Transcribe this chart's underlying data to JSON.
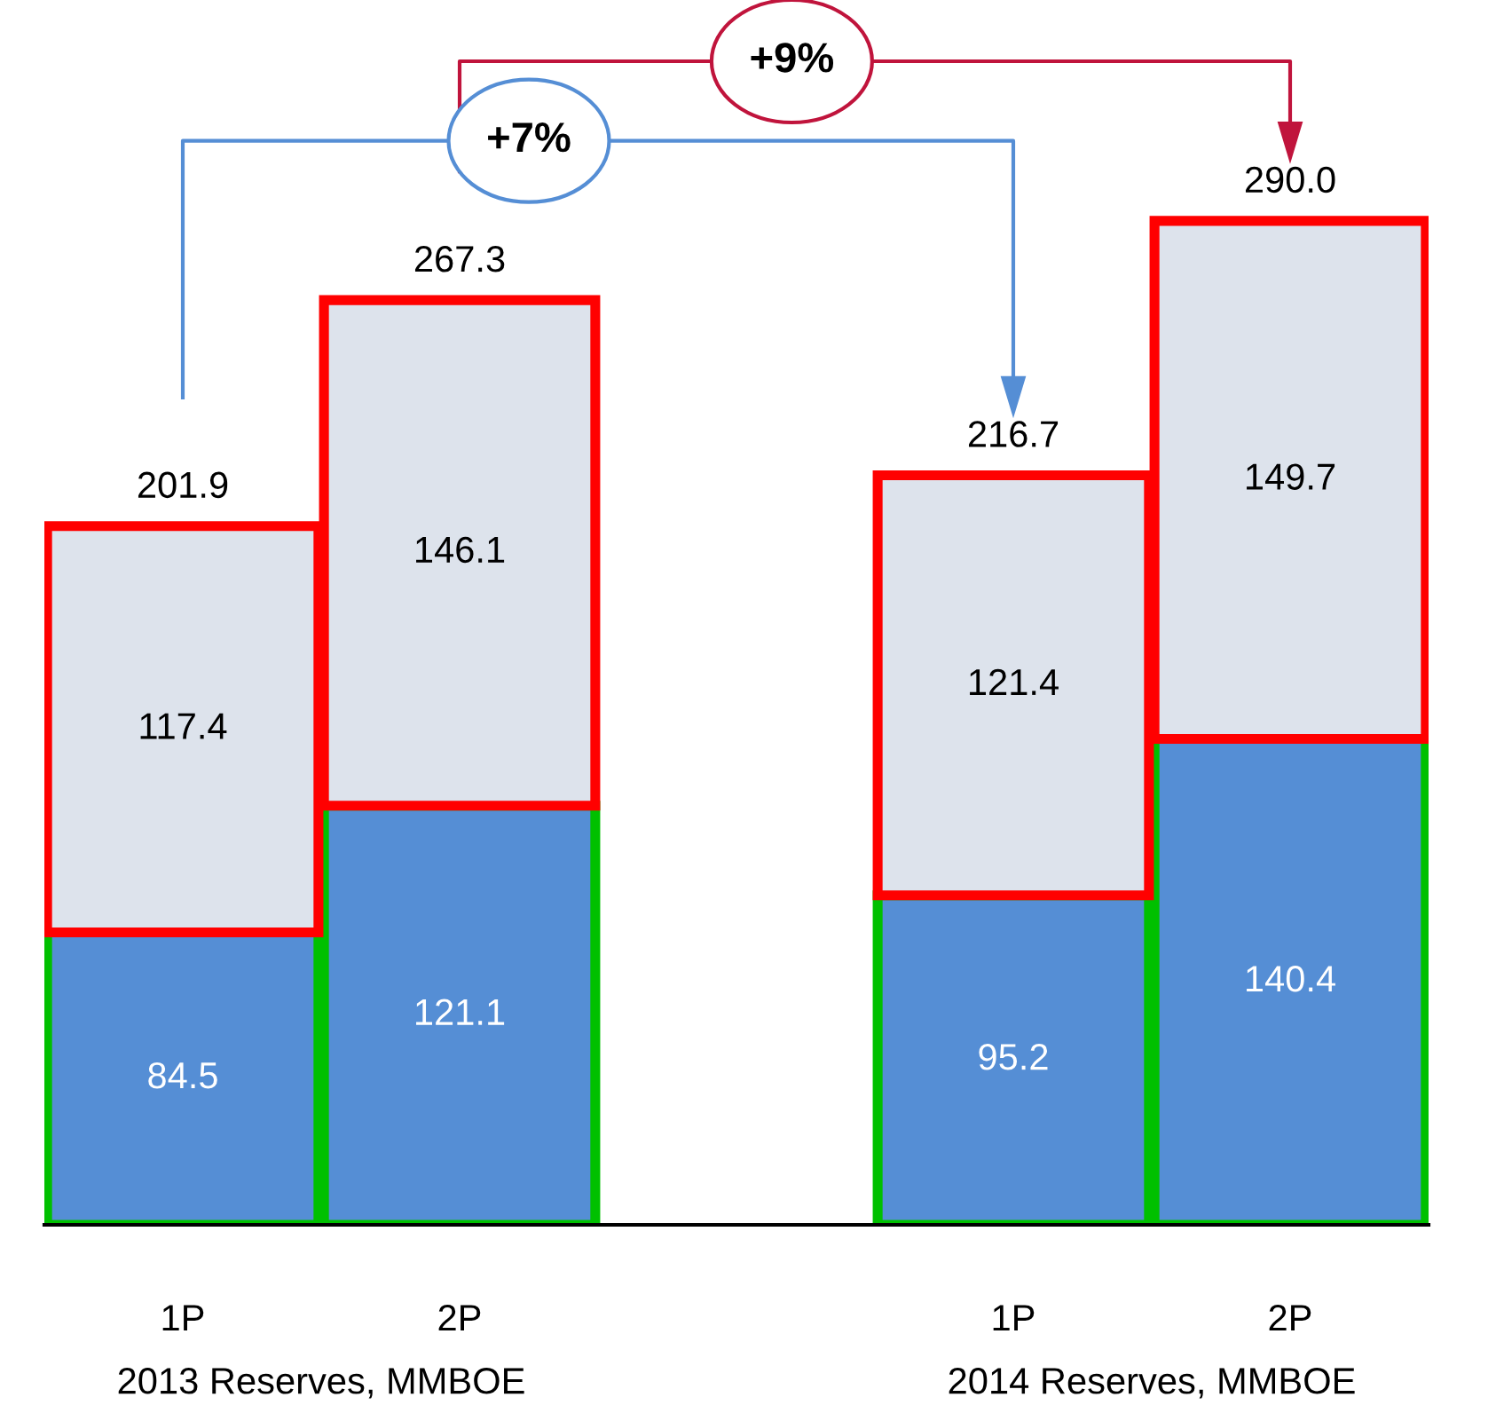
{
  "chart_data": {
    "type": "bar",
    "stacked": true,
    "relative": false,
    "data_labels": true,
    "categories": [
      "1P",
      "2P",
      null,
      "1P",
      "2P"
    ],
    "series": [
      {
        "color": "#558ed5",
        "values": [
          84.5,
          121.1,
          null,
          95.2,
          140.4
        ]
      },
      {
        "color": "#dde3ec",
        "values": [
          117.4,
          146.1,
          null,
          121.4,
          149.7
        ]
      }
    ],
    "totals": [
      "201.9",
      "267.3",
      null,
      "216.7",
      "290.0"
    ],
    "annotations": [
      "+7%",
      "+9%",
      "2013 Reserves, MMBOE",
      "2014 Reserves, MMBOE"
    ],
    "grid": false
  }
}
